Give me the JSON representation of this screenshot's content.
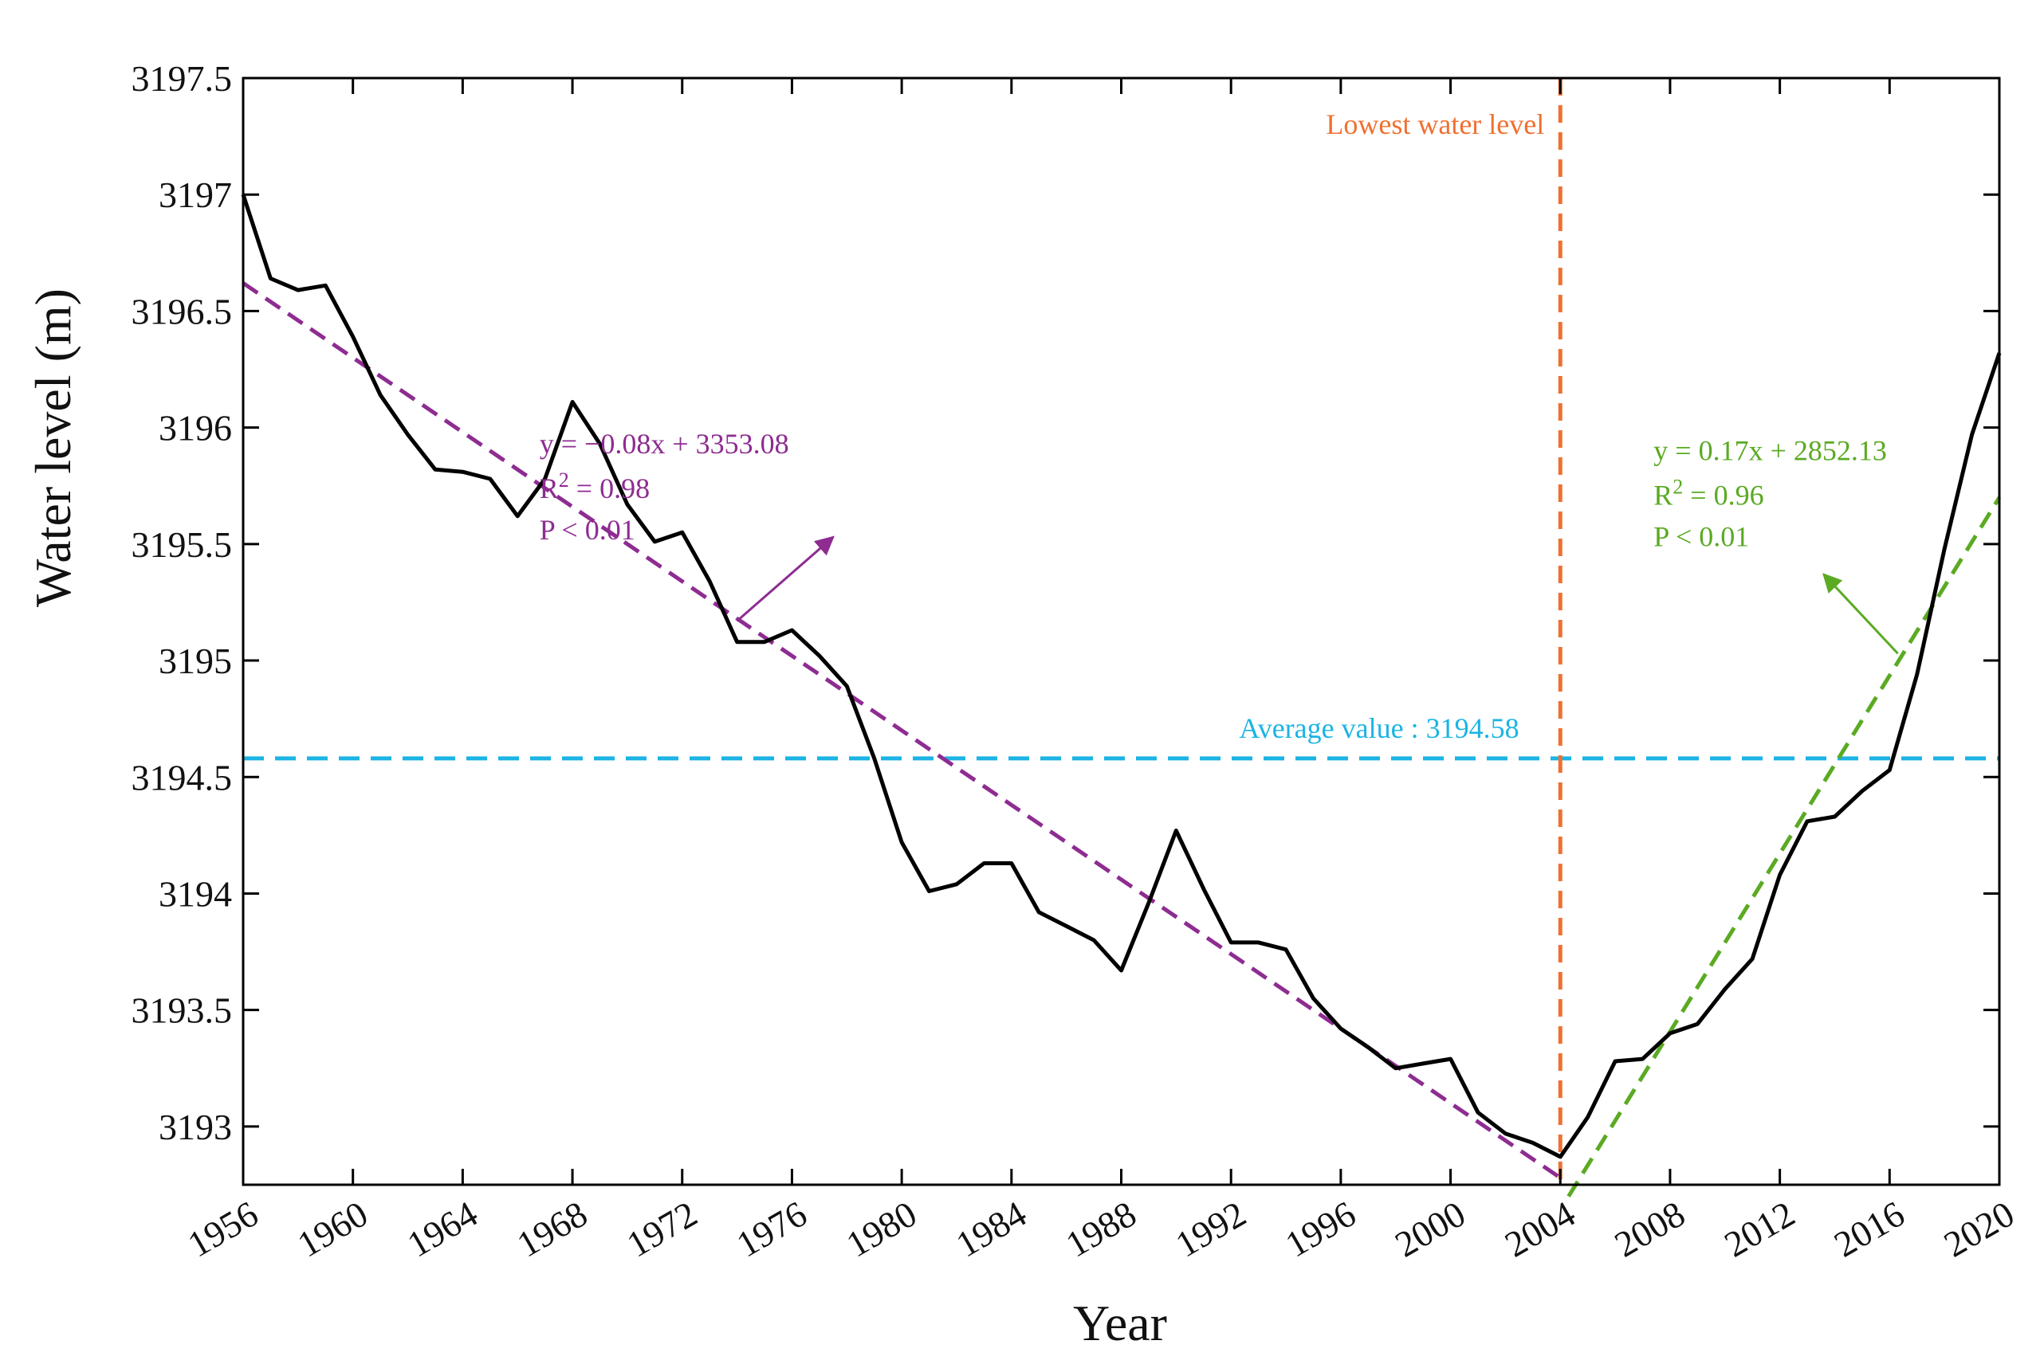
{
  "chart_data": {
    "type": "line",
    "title": "",
    "xlabel": "Year",
    "ylabel": "Water level (m)",
    "xlim": [
      1956,
      2020
    ],
    "ylim": [
      3192.75,
      3197.5
    ],
    "xticks": [
      1956,
      1960,
      1964,
      1968,
      1972,
      1976,
      1980,
      1984,
      1988,
      1992,
      1996,
      2000,
      2004,
      2008,
      2012,
      2016,
      2020
    ],
    "yticks": [
      3193,
      3193.5,
      3194,
      3194.5,
      3195,
      3195.5,
      3196,
      3196.5,
      3197,
      3197.5
    ],
    "ytick_labels": [
      "3193",
      "3193.5",
      "3194",
      "3194.5",
      "3195",
      "3195.5",
      "3196",
      "3196.5",
      "3197",
      "3197.5"
    ],
    "grid": false,
    "series": [
      {
        "name": "Water level",
        "color": "#000000",
        "x": [
          1956,
          1957,
          1958,
          1959,
          1960,
          1961,
          1962,
          1963,
          1964,
          1965,
          1966,
          1967,
          1968,
          1969,
          1970,
          1971,
          1972,
          1973,
          1974,
          1975,
          1976,
          1977,
          1978,
          1979,
          1980,
          1981,
          1982,
          1983,
          1984,
          1985,
          1986,
          1987,
          1988,
          1989,
          1990,
          1991,
          1992,
          1993,
          1994,
          1995,
          1996,
          1997,
          1998,
          1999,
          2000,
          2001,
          2002,
          2003,
          2004,
          2005,
          2006,
          2007,
          2008,
          2009,
          2010,
          2011,
          2012,
          2013,
          2014,
          2015,
          2016,
          2017,
          2018,
          2019,
          2020
        ],
        "values": [
          3197.0,
          3196.64,
          3196.59,
          3196.61,
          3196.39,
          3196.14,
          3195.97,
          3195.82,
          3195.81,
          3195.78,
          3195.62,
          3195.78,
          3196.11,
          3195.93,
          3195.67,
          3195.51,
          3195.55,
          3195.34,
          3195.08,
          3195.08,
          3195.13,
          3195.02,
          3194.89,
          3194.58,
          3194.22,
          3194.01,
          3194.04,
          3194.13,
          3194.13,
          3193.92,
          3193.86,
          3193.8,
          3193.67,
          3193.96,
          3194.27,
          3194.02,
          3193.79,
          3193.79,
          3193.76,
          3193.55,
          3193.42,
          3193.34,
          3193.25,
          3193.27,
          3193.29,
          3193.06,
          3192.97,
          3192.93,
          3192.87,
          3193.04,
          3193.28,
          3193.29,
          3193.4,
          3193.44,
          3193.59,
          3193.72,
          3194.08,
          3194.31,
          3194.33,
          3194.44,
          3194.53,
          3194.94,
          3195.48,
          3195.97,
          3196.32
        ]
      }
    ],
    "trend_lines": [
      {
        "name": "Trend 1956-2004",
        "color": "#8e2c91",
        "from": [
          1956,
          3196.62
        ],
        "to": [
          2004,
          3192.78
        ],
        "label_lines": [
          "y = −0.08x + 3353.08",
          "R",
          "2",
          " = 0.98",
          "P < 0.01"
        ],
        "arrow_from": [
          1974,
          3195.17
        ],
        "arrow_to": [
          1977.5,
          3195.53
        ]
      },
      {
        "name": "Trend 2004-2020",
        "color": "#5aaa22",
        "from": [
          2004.3,
          3192.7
        ],
        "to": [
          2020,
          3195.7
        ],
        "label_lines": [
          "y = 0.17x + 2852.13",
          "R",
          "2",
          " = 0.96",
          "P < 0.01"
        ],
        "arrow_from": [
          2016.3,
          3195.03
        ],
        "arrow_to": [
          2013.6,
          3195.37
        ]
      }
    ],
    "reference_lines": {
      "average": {
        "value": 3194.58,
        "label": "Average value : 3194.58",
        "color": "#1bb4e4"
      },
      "lowest": {
        "year": 2004,
        "label": "Lowest water level",
        "color": "#f07030"
      }
    }
  }
}
